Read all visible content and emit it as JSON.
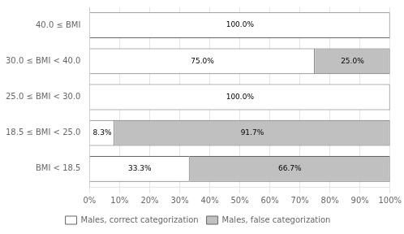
{
  "chart_data": {
    "type": "bar",
    "orientation": "horizontal",
    "stacked": true,
    "categories": [
      "BMI < 18.5",
      "18.5 ≤ BMI < 25.0",
      "25.0 ≤ BMI < 30.0",
      "30.0 ≤ BMI < 40.0",
      "40.0 ≤ BMI"
    ],
    "series": [
      {
        "name": "Males, correct categorization",
        "color": "#ffffff",
        "values": [
          33.3,
          8.3,
          100.0,
          75.0,
          100.0
        ],
        "value_labels": [
          "33.3%",
          "8.3%",
          "100.0%",
          "75.0%",
          "100.0%"
        ]
      },
      {
        "name": "Males, false categorization",
        "color": "#c0c0c0",
        "values": [
          66.7,
          91.7,
          0.0,
          25.0,
          0.0
        ],
        "value_labels": [
          "66.7%",
          "91.7%",
          null,
          "25.0%",
          null
        ]
      }
    ],
    "xlim": [
      0,
      100
    ],
    "xticks": [
      {
        "value": 0,
        "label": "0%"
      },
      {
        "value": 10,
        "label": "10%"
      },
      {
        "value": 20,
        "label": "20%"
      },
      {
        "value": 30,
        "label": "30%"
      },
      {
        "value": 40,
        "label": "40%"
      },
      {
        "value": 50,
        "label": "50%"
      },
      {
        "value": 60,
        "label": "60%"
      },
      {
        "value": 70,
        "label": "70%"
      },
      {
        "value": 80,
        "label": "80%"
      },
      {
        "value": 90,
        "label": "90%"
      },
      {
        "value": 100,
        "label": "100%"
      }
    ],
    "grid": "x",
    "legend": "bottom",
    "data_labels": true
  }
}
